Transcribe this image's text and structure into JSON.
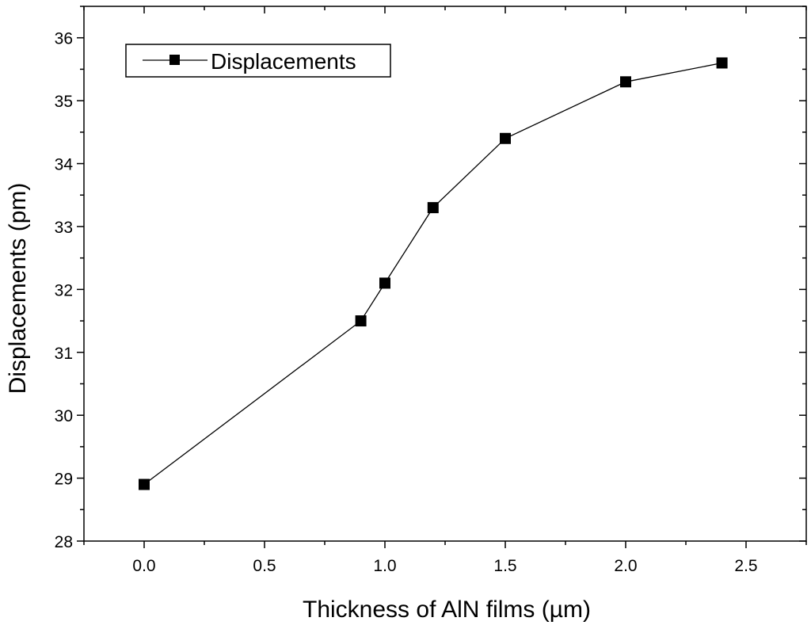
{
  "chart_data": {
    "type": "line",
    "title": "",
    "xlabel": "Thickness of AlN films (µm)",
    "ylabel": "Displacements (pm)",
    "xlim": [
      -0.25,
      2.75
    ],
    "ylim": [
      28,
      36.5
    ],
    "x_ticks": [
      "0.0",
      "0.5",
      "1.0",
      "1.5",
      "2.0",
      "2.5"
    ],
    "y_ticks": [
      "28",
      "29",
      "30",
      "31",
      "32",
      "33",
      "34",
      "35",
      "36"
    ],
    "grid": false,
    "legend_position": "top-left",
    "marker": "square",
    "series": [
      {
        "name": "Displacements",
        "color": "#000000",
        "x": [
          0.0,
          0.9,
          1.0,
          1.2,
          1.5,
          2.0,
          2.4
        ],
        "y": [
          28.9,
          31.5,
          32.1,
          33.3,
          34.4,
          35.3,
          35.6
        ]
      }
    ]
  }
}
